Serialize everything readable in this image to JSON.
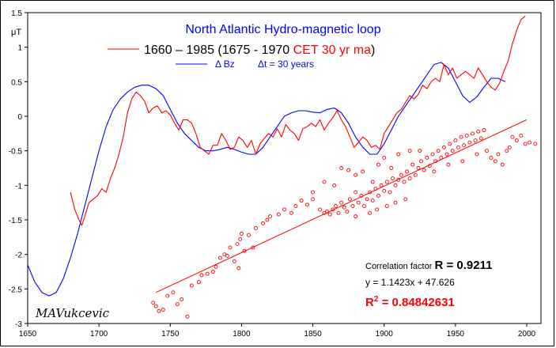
{
  "chart_data": {
    "type": "line",
    "title": "North Atlantic Hydro-magnetic loop",
    "unit_label": "μT",
    "xlim": [
      1650,
      2010
    ],
    "ylim": [
      -3,
      1.5
    ],
    "x_ticks": [
      "1650",
      "1700",
      "1750",
      "1800",
      "1850",
      "1900",
      "1950",
      "2000"
    ],
    "y_ticks": [
      "1.5",
      "1",
      "0.5",
      "0",
      "-0.5",
      "-1",
      "-1.5",
      "-2",
      "-2.5",
      "-3"
    ],
    "legend": {
      "position": "top-center",
      "red_entry": {
        "part1": "1660 – 1985 (1675 - 1970 ",
        "part2": "CET 30 yr ma",
        "part3": ")"
      },
      "blue_entry": "Δ Bz",
      "blue_note": "Δt = 30 years"
    },
    "series": [
      {
        "name": "Δ Bz",
        "color": "#0000ff",
        "x": [
          1650,
          1655,
          1660,
          1665,
          1670,
          1675,
          1680,
          1685,
          1690,
          1695,
          1700,
          1705,
          1710,
          1715,
          1720,
          1725,
          1730,
          1735,
          1740,
          1745,
          1750,
          1755,
          1760,
          1765,
          1770,
          1775,
          1780,
          1785,
          1790,
          1795,
          1800,
          1805,
          1810,
          1815,
          1820,
          1825,
          1830,
          1835,
          1840,
          1845,
          1850,
          1855,
          1860,
          1865,
          1870,
          1875,
          1880,
          1885,
          1890,
          1895,
          1900,
          1905,
          1910,
          1915,
          1920,
          1925,
          1930,
          1935,
          1940,
          1945,
          1950,
          1955,
          1960,
          1965,
          1970,
          1975,
          1980,
          1985
        ],
        "values": [
          -2.15,
          -2.4,
          -2.55,
          -2.6,
          -2.55,
          -2.35,
          -2.05,
          -1.7,
          -1.3,
          -0.9,
          -0.5,
          -0.15,
          0.1,
          0.25,
          0.35,
          0.42,
          0.45,
          0.45,
          0.4,
          0.3,
          0.1,
          -0.1,
          -0.25,
          -0.35,
          -0.45,
          -0.5,
          -0.5,
          -0.48,
          -0.45,
          -0.48,
          -0.52,
          -0.55,
          -0.55,
          -0.45,
          -0.3,
          -0.15,
          0,
          0.05,
          0.08,
          0.08,
          0.06,
          0.05,
          0.1,
          0.12,
          0.05,
          -0.1,
          -0.3,
          -0.45,
          -0.55,
          -0.55,
          -0.4,
          -0.2,
          0,
          0.15,
          0.3,
          0.45,
          0.6,
          0.75,
          0.78,
          0.7,
          0.5,
          0.3,
          0.2,
          0.28,
          0.42,
          0.55,
          0.55,
          0.5
        ]
      },
      {
        "name": "1660 – 1985 (1675 - 1970 CET 30 yr ma)",
        "color": "#ff0000",
        "x": [
          1680,
          1683,
          1686,
          1688,
          1690,
          1693,
          1696,
          1699,
          1702,
          1705,
          1708,
          1711,
          1714,
          1717,
          1720,
          1723,
          1726,
          1729,
          1732,
          1735,
          1738,
          1741,
          1744,
          1747,
          1750,
          1753,
          1756,
          1759,
          1762,
          1765,
          1768,
          1771,
          1774,
          1777,
          1780,
          1783,
          1786,
          1789,
          1792,
          1795,
          1798,
          1801,
          1804,
          1807,
          1810,
          1813,
          1816,
          1819,
          1822,
          1825,
          1828,
          1831,
          1834,
          1837,
          1840,
          1843,
          1846,
          1849,
          1852,
          1855,
          1858,
          1861,
          1864,
          1867,
          1870,
          1873,
          1876,
          1879,
          1882,
          1885,
          1888,
          1891,
          1894,
          1897,
          1900,
          1903,
          1906,
          1909,
          1912,
          1915,
          1918,
          1921,
          1924,
          1927,
          1930,
          1933,
          1936,
          1939,
          1942,
          1945,
          1948,
          1951,
          1954,
          1957,
          1960,
          1963,
          1966,
          1969,
          1972,
          1975,
          1978,
          1981,
          1984,
          1987,
          1990,
          1993,
          1996,
          1999
        ],
        "values": [
          -1.1,
          -1.35,
          -1.5,
          -1.58,
          -1.45,
          -1.25,
          -1.2,
          -1.15,
          -1.05,
          -1.1,
          -0.9,
          -0.75,
          -0.55,
          -0.3,
          0.05,
          0.25,
          0.35,
          0.3,
          0.22,
          0.05,
          0.12,
          0.15,
          0.05,
          0.08,
          0.02,
          -0.1,
          -0.2,
          -0.05,
          -0.05,
          -0.1,
          -0.25,
          -0.45,
          -0.5,
          -0.55,
          -0.42,
          -0.42,
          -0.25,
          -0.35,
          -0.48,
          -0.45,
          -0.3,
          -0.35,
          -0.45,
          -0.35,
          -0.55,
          -0.4,
          -0.32,
          -0.25,
          -0.3,
          -0.18,
          -0.3,
          -0.12,
          -0.2,
          -0.25,
          -0.35,
          -0.18,
          -0.15,
          -0.1,
          -0.15,
          -0.05,
          -0.2,
          -0.1,
          -0.02,
          0.08,
          -0.05,
          -0.15,
          -0.3,
          -0.45,
          -0.38,
          -0.3,
          -0.35,
          -0.45,
          -0.42,
          -0.48,
          -0.25,
          -0.15,
          -0.05,
          0.05,
          0.1,
          0.2,
          0.3,
          0.25,
          0.32,
          0.45,
          0.4,
          0.5,
          0.55,
          0.5,
          0.75,
          0.6,
          0.7,
          0.55,
          0.6,
          0.65,
          0.6,
          0.55,
          0.7,
          0.6,
          0.5,
          0.42,
          0.38,
          0.48,
          0.65,
          0.8,
          1.05,
          1.25,
          1.4,
          1.45
        ]
      }
    ],
    "scatter": {
      "color": "#ff0000",
      "points": [
        [
          1738,
          -2.7
        ],
        [
          1740,
          -2.75
        ],
        [
          1742,
          -2.82
        ],
        [
          1745,
          -2.8
        ],
        [
          1748,
          -2.6
        ],
        [
          1752,
          -2.55
        ],
        [
          1755,
          -2.72
        ],
        [
          1758,
          -2.65
        ],
        [
          1762,
          -2.9
        ],
        [
          1765,
          -2.45
        ],
        [
          1770,
          -2.4
        ],
        [
          1772,
          -2.3
        ],
        [
          1776,
          -2.28
        ],
        [
          1780,
          -2.25
        ],
        [
          1782,
          -2.18
        ],
        [
          1785,
          -2.05
        ],
        [
          1788,
          -2.0
        ],
        [
          1790,
          -2.02
        ],
        [
          1792,
          -1.9
        ],
        [
          1795,
          -2.1
        ],
        [
          1797,
          -1.85
        ],
        [
          1798,
          -2.2
        ],
        [
          1799,
          -1.78
        ],
        [
          1800,
          -1.7
        ],
        [
          1802,
          -1.95
        ],
        [
          1805,
          -1.72
        ],
        [
          1808,
          -1.9
        ],
        [
          1810,
          -1.62
        ],
        [
          1815,
          -1.55
        ],
        [
          1818,
          -1.5
        ],
        [
          1820,
          -1.45
        ],
        [
          1826,
          -1.42
        ],
        [
          1830,
          -1.35
        ],
        [
          1835,
          -1.4
        ],
        [
          1838,
          -1.3
        ],
        [
          1842,
          -1.22
        ],
        [
          1846,
          -1.28
        ],
        [
          1850,
          -1.2
        ],
        [
          1855,
          -1.35
        ],
        [
          1858,
          -1.4
        ],
        [
          1860,
          -1.38
        ],
        [
          1862,
          -1.42
        ],
        [
          1864,
          -1.35
        ],
        [
          1866,
          -1.3
        ],
        [
          1868,
          -1.4
        ],
        [
          1870,
          -1.25
        ],
        [
          1872,
          -1.32
        ],
        [
          1874,
          -1.38
        ],
        [
          1876,
          -1.2
        ],
        [
          1878,
          -1.3
        ],
        [
          1880,
          -1.1
        ],
        [
          1882,
          -1.25
        ],
        [
          1884,
          -1.15
        ],
        [
          1886,
          -1.3
        ],
        [
          1888,
          -1.2
        ],
        [
          1890,
          -1.1
        ],
        [
          1892,
          -1.22
        ],
        [
          1894,
          -1.05
        ],
        [
          1896,
          -1.15
        ],
        [
          1898,
          -1.0
        ],
        [
          1900,
          -1.08
        ],
        [
          1902,
          -0.95
        ],
        [
          1904,
          -1.1
        ],
        [
          1906,
          -0.9
        ],
        [
          1908,
          -1.0
        ],
        [
          1910,
          -0.92
        ],
        [
          1912,
          -0.85
        ],
        [
          1914,
          -0.95
        ],
        [
          1916,
          -0.8
        ],
        [
          1918,
          -0.9
        ],
        [
          1920,
          -0.7
        ],
        [
          1922,
          -0.85
        ],
        [
          1924,
          -0.75
        ],
        [
          1926,
          -0.65
        ],
        [
          1928,
          -0.78
        ],
        [
          1930,
          -0.6
        ],
        [
          1932,
          -0.72
        ],
        [
          1934,
          -0.55
        ],
        [
          1936,
          -0.65
        ],
        [
          1938,
          -0.5
        ],
        [
          1940,
          -0.6
        ],
        [
          1942,
          -0.45
        ],
        [
          1944,
          -0.55
        ],
        [
          1946,
          -0.4
        ],
        [
          1948,
          -0.5
        ],
        [
          1950,
          -0.35
        ],
        [
          1952,
          -0.45
        ],
        [
          1954,
          -0.3
        ],
        [
          1956,
          -0.42
        ],
        [
          1958,
          -0.28
        ],
        [
          1960,
          -0.38
        ],
        [
          1962,
          -0.25
        ],
        [
          1964,
          -0.35
        ],
        [
          1966,
          -0.22
        ],
        [
          1968,
          -0.32
        ],
        [
          1970,
          -0.2
        ],
        [
          1972,
          -0.5
        ],
        [
          1975,
          -0.6
        ],
        [
          1978,
          -0.65
        ],
        [
          1980,
          -0.55
        ],
        [
          1983,
          -0.7
        ],
        [
          1986,
          -0.5
        ],
        [
          1988,
          -0.45
        ],
        [
          1990,
          -0.3
        ],
        [
          1993,
          -0.35
        ],
        [
          1996,
          -0.28
        ],
        [
          1999,
          -0.4
        ],
        [
          2002,
          -0.38
        ],
        [
          2006,
          -0.4
        ],
        [
          1870,
          -0.75
        ],
        [
          1875,
          -0.78
        ],
        [
          1880,
          -0.85
        ],
        [
          1885,
          -0.8
        ],
        [
          1892,
          -0.95
        ],
        [
          1896,
          -0.7
        ],
        [
          1900,
          -0.6
        ],
        [
          1905,
          -0.75
        ],
        [
          1910,
          -0.55
        ],
        [
          1918,
          -0.5
        ],
        [
          1925,
          -0.5
        ],
        [
          1935,
          -0.8
        ],
        [
          1945,
          -0.7
        ],
        [
          1955,
          -0.65
        ],
        [
          1965,
          -0.55
        ],
        [
          1865,
          -1.0
        ],
        [
          1858,
          -0.95
        ],
        [
          1850,
          -1.1
        ],
        [
          1880,
          -1.45
        ],
        [
          1890,
          -1.4
        ],
        [
          1895,
          -1.35
        ],
        [
          1902,
          -1.3
        ],
        [
          1908,
          -1.25
        ],
        [
          1915,
          -1.2
        ]
      ]
    },
    "trendline": {
      "x": [
        1740,
        2000
      ],
      "y": [
        -2.55,
        -0.05
      ],
      "color": "#ff0000"
    },
    "stats": {
      "correlation_label": "Correlation factor ",
      "correlation_value": "R = 0.9211",
      "equation": "y = 1.1423x + 47.626",
      "r2_prefix": "R",
      "r2_sup": "2",
      "r2_value": " = 0.84842631"
    },
    "signature": "MAVukcevic"
  }
}
